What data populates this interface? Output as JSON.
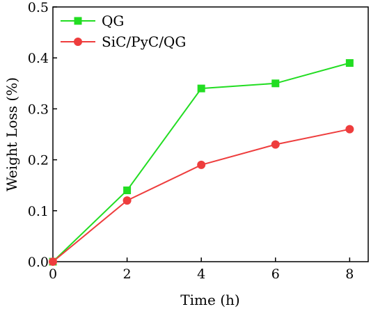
{
  "chart_data": {
    "type": "line",
    "title": "",
    "xlabel": "Time (h)",
    "ylabel": "Weight Loss (%)",
    "xlim": [
      0,
      8.5
    ],
    "ylim": [
      0,
      0.5
    ],
    "xticks": [
      0,
      2,
      4,
      6,
      8
    ],
    "yticks": [
      0.0,
      0.1,
      0.2,
      0.3,
      0.4,
      0.5
    ],
    "xtick_labels": [
      "0",
      "2",
      "4",
      "6",
      "8"
    ],
    "ytick_labels": [
      "0.0",
      "0.1",
      "0.2",
      "0.3",
      "0.4",
      "0.5"
    ],
    "grid": false,
    "legend_position": "top-left",
    "series": [
      {
        "name": "QG",
        "color": "#22dd22",
        "marker": "square",
        "x": [
          0,
          2,
          4,
          6,
          8
        ],
        "y": [
          0,
          0.14,
          0.34,
          0.35,
          0.39
        ]
      },
      {
        "name": "SiC/PyC/QG",
        "color": "#ee3d3d",
        "marker": "circle",
        "x": [
          0,
          2,
          4,
          6,
          8
        ],
        "y": [
          0,
          0.12,
          0.19,
          0.23,
          0.26
        ]
      }
    ]
  }
}
